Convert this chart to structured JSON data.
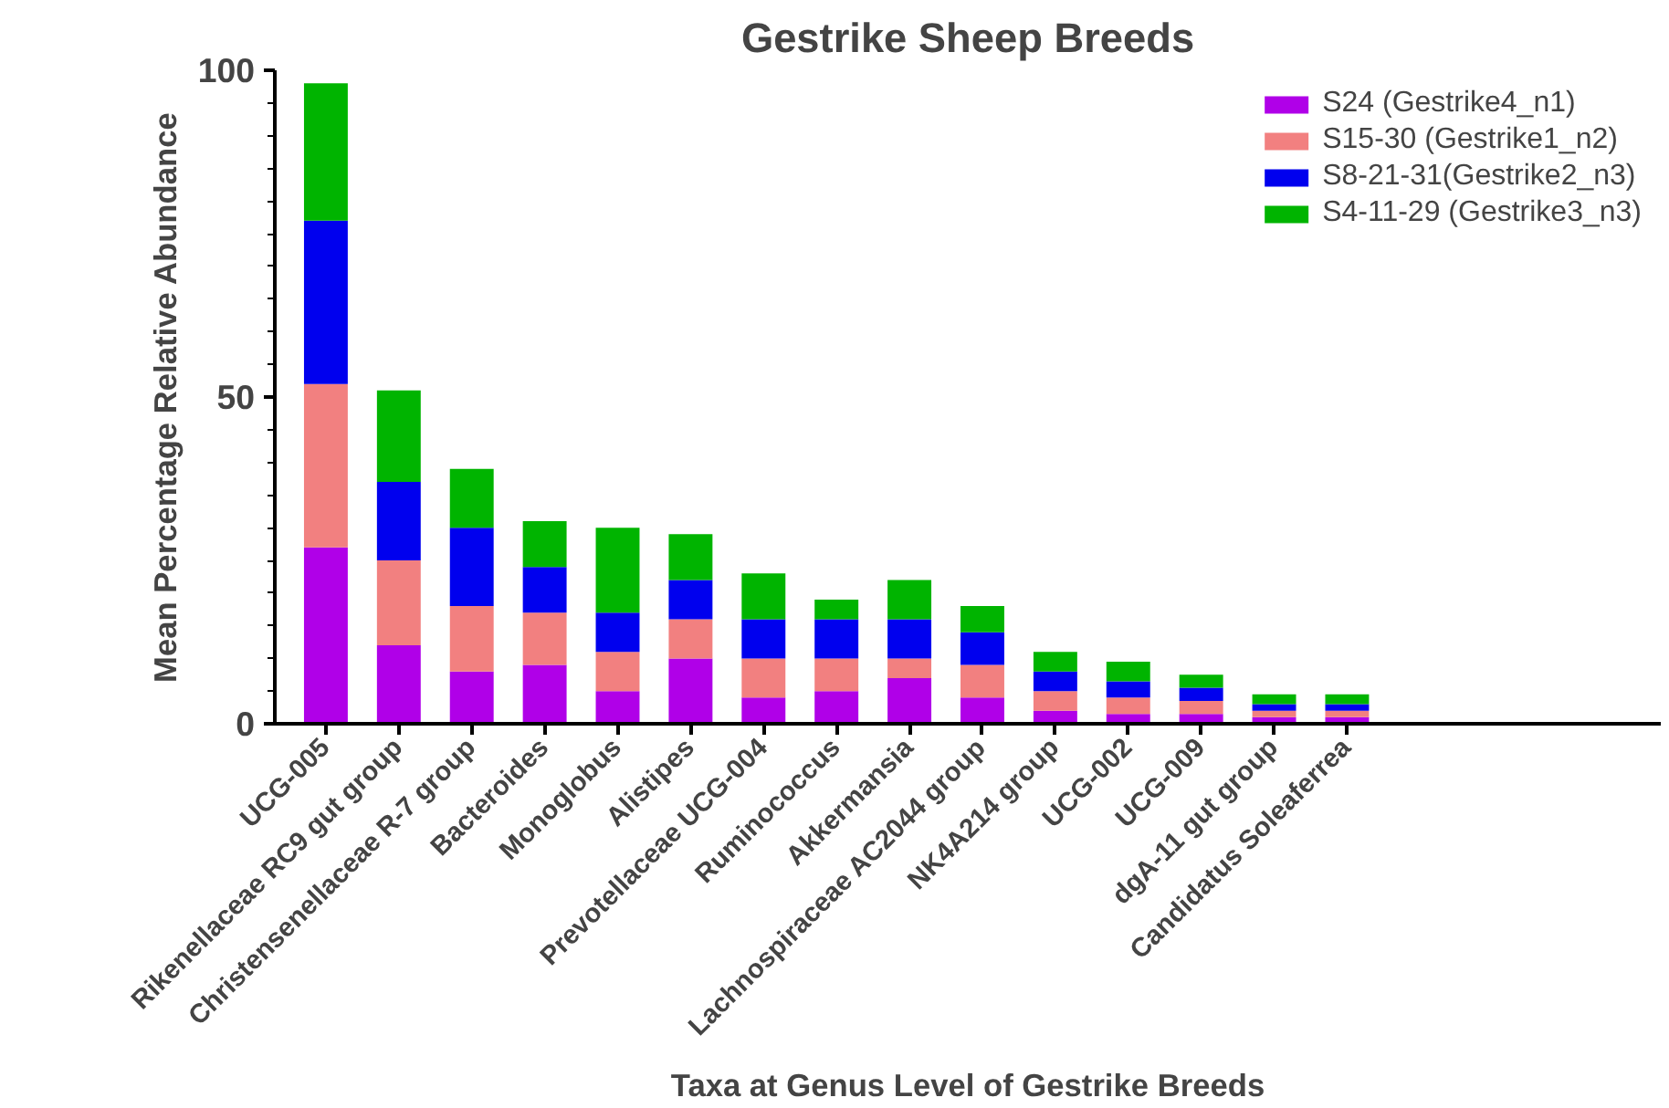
{
  "chart_data": {
    "type": "bar",
    "stacked": true,
    "title": "Gestrike Sheep Breeds",
    "xlabel": "Taxa at Genus Level of Gestrike Breeds",
    "ylabel": "Mean Percentage Relative Abundance",
    "categories": [
      "UCG-005",
      "Rikenellaceae RC9 gut group",
      "Christensenellaceae R-7 group",
      "Bacteroides",
      "Monoglobus",
      "Alistipes",
      "Prevotellaceae UCG-004",
      "Ruminococcus",
      "Akkermansia",
      "Lachnospiraceae AC2044 group",
      "NK4A214 group",
      "UCG-002",
      "UCG-009",
      "dgA-11 gut group",
      "Candidatus Soleaferrea"
    ],
    "series": [
      {
        "name": "S24 (Gestrike4_n1)",
        "color": "#b000e8",
        "values": [
          27,
          12,
          8,
          9,
          5,
          10,
          4,
          5,
          7,
          4,
          2,
          1.5,
          1.5,
          1,
          1
        ]
      },
      {
        "name": "S15-30 (Gestrike1_n2)",
        "color": "#f28080",
        "values": [
          25,
          13,
          10,
          8,
          6,
          6,
          6,
          5,
          3,
          5,
          3,
          2.5,
          2,
          1,
          1
        ]
      },
      {
        "name": "S8-21-31(Gestrike2_n3)",
        "color": "#0000ee",
        "values": [
          25,
          12,
          12,
          7,
          6,
          6,
          6,
          6,
          6,
          5,
          3,
          2.5,
          2,
          1,
          1
        ]
      },
      {
        "name": "S4-11-29 (Gestrike3_n3)",
        "color": "#00b400",
        "values": [
          21,
          14,
          9,
          7,
          13,
          7,
          7,
          3,
          6,
          4,
          3,
          3,
          2,
          1.5,
          1.5
        ]
      }
    ],
    "ylim": [
      0,
      100
    ],
    "yticks": [
      0,
      50,
      100
    ],
    "grid": false,
    "legend": "top right"
  }
}
